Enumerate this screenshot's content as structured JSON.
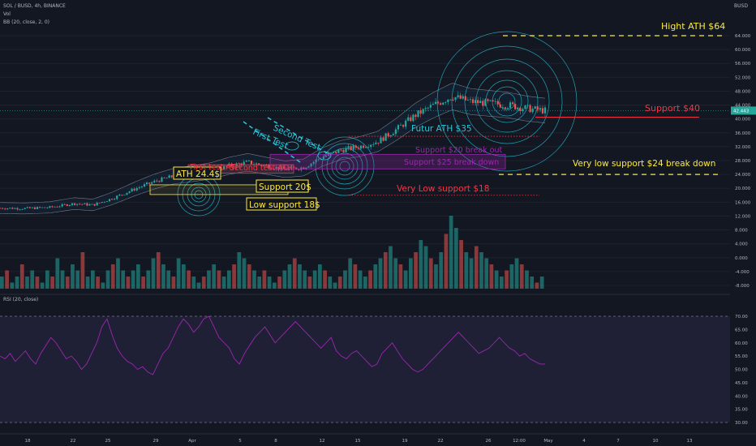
{
  "header": {
    "symbol_line": "SOL / BUSD, 4h, BINANCE",
    "vol_label": "Vol",
    "bb_label": "BB (20, close, 2, 0)",
    "rsi_label": "RSI (20, close)",
    "currency": "BUSD"
  },
  "colors": {
    "background": "#131722",
    "up": "#26a69a",
    "down": "#ef5350",
    "yellow_annotation": "#ffeb3b",
    "red_annotation": "#f23645",
    "purple_annotation": "#9c27b0",
    "fib_circles": "#26c6da",
    "rsi_line": "#9c27b0"
  },
  "chart_data": [
    {
      "type": "candlestick",
      "title": "",
      "price_axis": {
        "ticks": [
          "64.000",
          "60.000",
          "56.000",
          "52.000",
          "48.000",
          "44.000",
          "40.000",
          "36.000",
          "32.000",
          "28.000",
          "24.000",
          "20.000",
          "16.000",
          "12.000",
          "8.000",
          "4.000",
          "0.000",
          "-4.000",
          "-8.000"
        ],
        "ylim": [
          -8,
          68
        ],
        "last_price_label": "42.443",
        "last_price": 42.4
      },
      "x_axis": {
        "ticks": [
          "18",
          "22",
          "25",
          "29",
          "Apr",
          "5",
          "8",
          "12",
          "15",
          "19",
          "22",
          "26",
          "12:00",
          "May",
          "4",
          "7",
          "10",
          "13"
        ]
      },
      "series_path": [
        [
          0,
          14.3
        ],
        [
          0.04,
          14.2
        ],
        [
          0.08,
          14.5
        ],
        [
          0.12,
          15.6
        ],
        [
          0.15,
          15.2
        ],
        [
          0.18,
          17.0
        ],
        [
          0.22,
          20.0
        ],
        [
          0.25,
          22.0
        ],
        [
          0.28,
          23.5
        ],
        [
          0.31,
          24.2
        ],
        [
          0.34,
          25.0
        ],
        [
          0.37,
          26.5
        ],
        [
          0.4,
          27.5
        ],
        [
          0.43,
          26.5
        ],
        [
          0.46,
          25.5
        ],
        [
          0.49,
          26.0
        ],
        [
          0.52,
          29.0
        ],
        [
          0.55,
          31.0
        ],
        [
          0.58,
          32.0
        ],
        [
          0.61,
          33.5
        ],
        [
          0.64,
          37.0
        ],
        [
          0.67,
          41.0
        ],
        [
          0.7,
          44.0
        ],
        [
          0.73,
          46.5
        ],
        [
          0.76,
          45.0
        ],
        [
          0.79,
          44.5
        ],
        [
          0.82,
          44.0
        ],
        [
          0.85,
          43.0
        ],
        [
          0.88,
          42.4
        ]
      ],
      "annotations": [
        {
          "text": "Hight ATH $64",
          "price": 64,
          "color": "yellow"
        },
        {
          "text": "Support $40",
          "price": 40.5,
          "color": "red"
        },
        {
          "text": "Futur ATH $35",
          "price": 35,
          "color": "teal"
        },
        {
          "text": "Very low support $24 break down",
          "price": 24,
          "color": "yellow"
        },
        {
          "text": "Support $20 break out",
          "price": 29.5,
          "color": "purple"
        },
        {
          "text": "Support $25 break down",
          "price": 26,
          "color": "purple"
        },
        {
          "text": "Very Low support $18",
          "price": 18,
          "color": "red"
        },
        {
          "text": "Second Test",
          "color": "teal"
        },
        {
          "text": "First Test",
          "color": "teal"
        },
        {
          "text": "ATH 24.4$",
          "color": "yellow"
        },
        {
          "text": "First test ATH",
          "color": "red"
        },
        {
          "text": "Second test ATH",
          "color": "red"
        },
        {
          "text": "Support 20$",
          "color": "yellow"
        },
        {
          "text": "Low support 18$",
          "color": "yellow"
        }
      ]
    },
    {
      "type": "bar",
      "title": "Vol",
      "values": [
        2,
        3,
        1,
        2,
        4,
        2,
        3,
        2,
        1,
        3,
        2,
        5,
        3,
        2,
        4,
        3,
        6,
        2,
        3,
        2,
        1,
        3,
        4,
        5,
        3,
        2,
        3,
        4,
        2,
        3,
        5,
        6,
        4,
        3,
        2,
        5,
        4,
        3,
        2,
        1,
        2,
        3,
        4,
        3,
        2,
        3,
        4,
        6,
        5,
        4,
        3,
        2,
        3,
        2,
        1,
        2,
        3,
        4,
        5,
        4,
        3,
        2,
        3,
        4,
        3,
        2,
        1,
        2,
        3,
        5,
        4,
        3,
        2,
        3,
        4,
        5,
        6,
        7,
        5,
        4,
        3,
        5,
        6,
        8,
        7,
        5,
        4,
        6,
        9,
        12,
        10,
        8,
        6,
        5,
        7,
        6,
        5,
        4,
        3,
        2,
        3,
        4,
        5,
        4,
        3,
        2,
        1,
        2
      ]
    },
    {
      "type": "line",
      "title": "RSI (20, close)",
      "y_ticks": [
        "70.00",
        "65.00",
        "60.00",
        "55.00",
        "50.00",
        "45.00",
        "40.00",
        "35.00",
        "30.00"
      ],
      "ylim": [
        28,
        72
      ],
      "bands": [
        30,
        70
      ],
      "values": [
        55,
        54,
        56,
        53,
        55,
        57,
        54,
        52,
        56,
        59,
        62,
        60,
        57,
        54,
        55,
        53,
        50,
        52,
        56,
        60,
        66,
        69,
        63,
        58,
        55,
        53,
        52,
        50,
        51,
        49,
        48,
        52,
        56,
        58,
        62,
        66,
        69,
        67,
        64,
        66,
        69,
        70,
        66,
        62,
        60,
        58,
        54,
        52,
        56,
        59,
        62,
        64,
        66,
        63,
        60,
        62,
        64,
        66,
        68,
        66,
        64,
        62,
        60,
        58,
        60,
        62,
        57,
        55,
        54,
        56,
        57,
        55,
        53,
        51,
        52,
        56,
        58,
        60,
        57,
        54,
        52,
        50,
        49,
        50,
        52,
        54,
        56,
        58,
        60,
        62,
        64,
        62,
        60,
        58,
        56,
        57,
        58,
        60,
        62,
        60,
        58,
        57,
        55,
        56,
        54,
        53,
        52,
        52
      ]
    }
  ]
}
